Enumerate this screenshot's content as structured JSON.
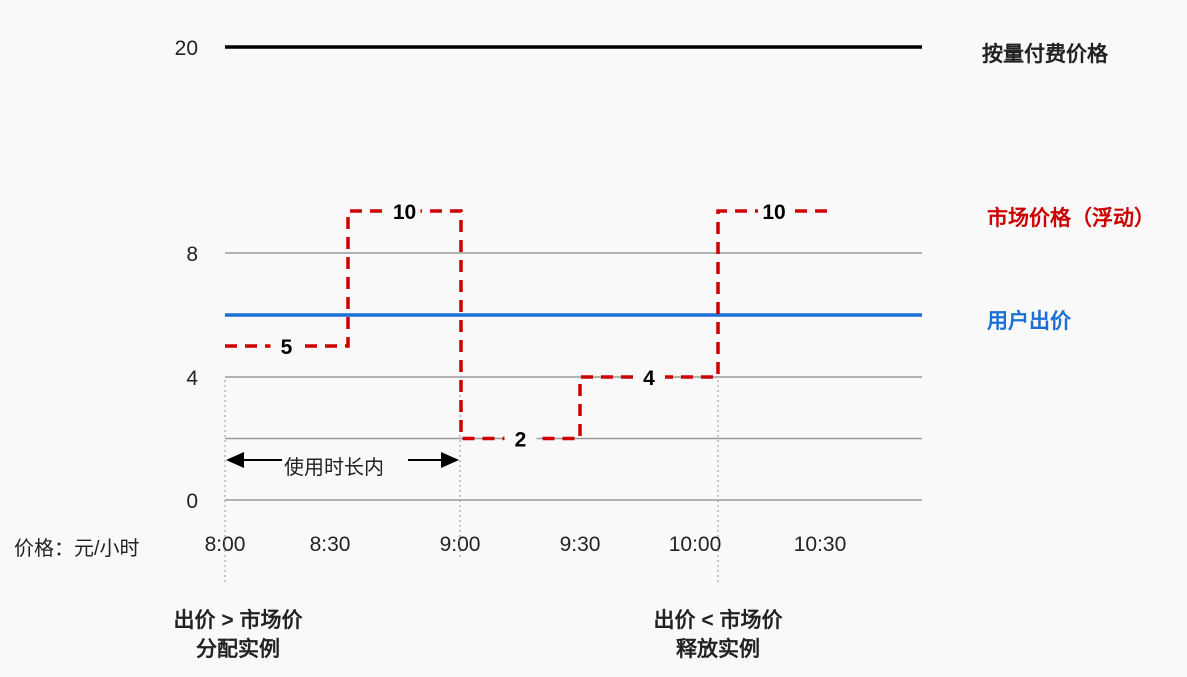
{
  "chart_data": {
    "type": "line",
    "y_ticks": [
      0,
      4,
      8,
      20
    ],
    "gridlines": [
      0,
      2,
      4,
      8
    ],
    "x_ticks": [
      "8:00",
      "8:30",
      "9:00",
      "9:30",
      "10:00",
      "10:30"
    ],
    "y_unit_label": "价格：元/小时",
    "series": [
      {
        "name": "按量付费价格",
        "color": "#000000",
        "style": "solid",
        "value": 20
      },
      {
        "name": "市场价格（浮动）",
        "color": "#cc0000",
        "style": "dashed-step",
        "steps": [
          {
            "from": "8:00",
            "to": "8:35",
            "value": 5
          },
          {
            "from": "8:35",
            "to": "9:00",
            "value": 10
          },
          {
            "from": "9:00",
            "to": "9:30",
            "value": 2
          },
          {
            "from": "9:30",
            "to": "10:00",
            "value": 4
          },
          {
            "from": "10:00",
            "to": "10:30",
            "value": 10
          }
        ]
      },
      {
        "name": "用户出价",
        "color": "#1a6fd6",
        "style": "solid",
        "value": 6
      }
    ],
    "annotations": {
      "duration": "使用时长内",
      "allocate": [
        "出价 > 市场价",
        "分配实例"
      ],
      "release": [
        "出价 < 市场价",
        "释放实例"
      ]
    }
  }
}
